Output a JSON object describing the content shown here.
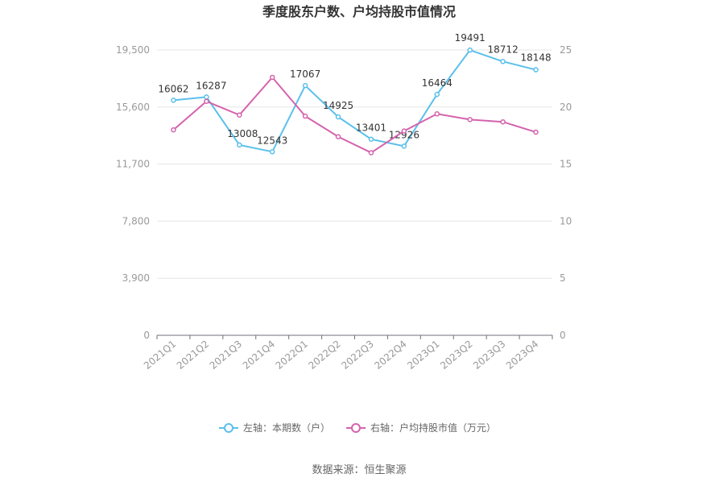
{
  "chart_data": {
    "type": "line",
    "title": "季度股东户数、户均持股市值情况",
    "categories": [
      "2021Q1",
      "2021Q2",
      "2021Q3",
      "2021Q4",
      "2022Q1",
      "2022Q2",
      "2022Q3",
      "2022Q4",
      "2023Q1",
      "2023Q2",
      "2023Q3",
      "2023Q4"
    ],
    "left_axis": {
      "min": 0,
      "max": 19500,
      "ticks": [
        "0",
        "3,900",
        "7,800",
        "11,700",
        "15,600",
        "19,500"
      ],
      "tick_values": [
        0,
        3900,
        7800,
        11700,
        15600,
        19500
      ]
    },
    "right_axis": {
      "min": 0,
      "max": 25,
      "ticks": [
        "0",
        "5",
        "10",
        "15",
        "20",
        "25"
      ],
      "tick_values": [
        0,
        5,
        10,
        15,
        20,
        25
      ]
    },
    "series": [
      {
        "name": "左轴：本期数（户）",
        "axis": "left",
        "color": "#5bc0eb",
        "values": [
          16062,
          16287,
          13008,
          12543,
          17067,
          14925,
          13401,
          12926,
          16464,
          19491,
          18712,
          18148
        ],
        "labels": [
          "16062",
          "16287",
          "13008",
          "12543",
          "17067",
          "14925",
          "13401",
          "12926",
          "16464",
          "19491",
          "18712",
          "18148"
        ]
      },
      {
        "name": "右轴：户均持股市值（万元）",
        "axis": "right",
        "color": "#d463ad",
        "values": [
          18.0,
          20.5,
          19.3,
          22.6,
          19.2,
          17.4,
          16.0,
          17.9,
          19.4,
          18.9,
          18.7,
          17.8
        ]
      }
    ],
    "grid": true,
    "legend_position": "bottom"
  },
  "source_text": "数据来源：恒生聚源"
}
